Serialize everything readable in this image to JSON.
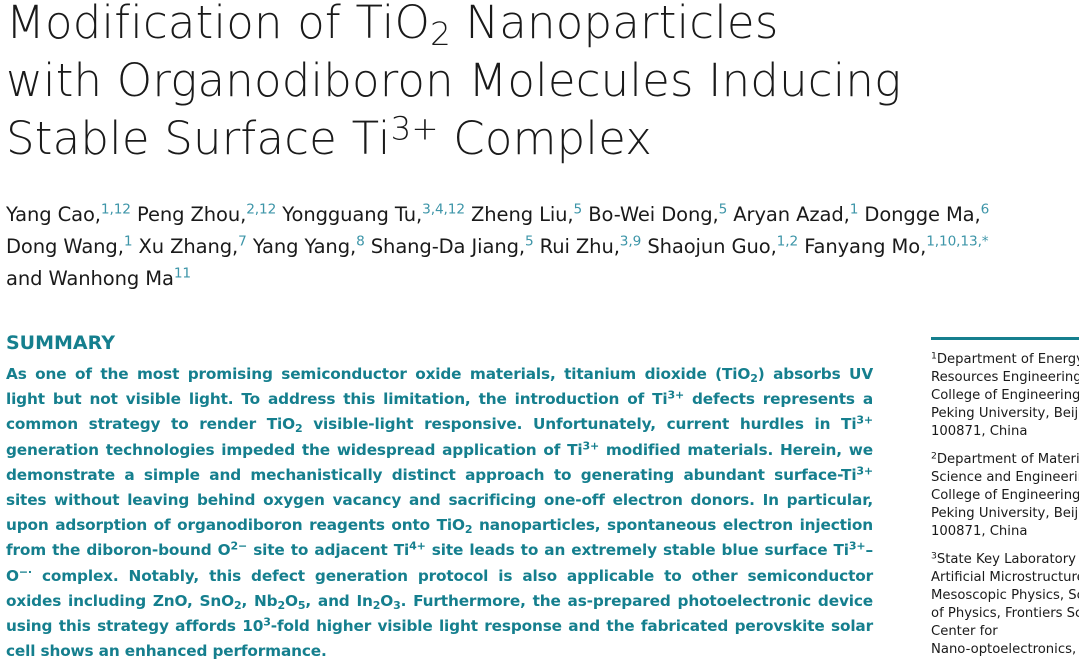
{
  "title": [
    [
      "Modification of TiO",
      {
        "sub": "2"
      },
      " Nanoparticles"
    ],
    [
      "with Organodiboron Molecules Inducing"
    ],
    [
      "Stable Surface Ti",
      {
        "sup": "3+"
      },
      " Complex"
    ]
  ],
  "authors": [
    [
      {
        "name": "Yang Cao,",
        "aff": "1,12"
      },
      {
        "name": "Peng Zhou,",
        "aff": "2,12"
      },
      {
        "name": "Yongguang Tu,",
        "aff": "3,4,12"
      },
      {
        "name": "Zheng Liu,",
        "aff": "5"
      },
      {
        "name": "Bo-Wei Dong,",
        "aff": "5"
      },
      {
        "name": "Aryan Azad,",
        "aff": "1"
      },
      {
        "name": "Dongge Ma,",
        "aff": "6"
      }
    ],
    [
      {
        "name": "Dong Wang,",
        "aff": "1"
      },
      {
        "name": "Xu Zhang,",
        "aff": "7"
      },
      {
        "name": "Yang Yang,",
        "aff": "8"
      },
      {
        "name": "Shang-Da Jiang,",
        "aff": "5"
      },
      {
        "name": "Rui Zhu,",
        "aff": "3,9"
      },
      {
        "name": "Shaojun Guo,",
        "aff": "1,2"
      },
      {
        "name": "Fanyang Mo,",
        "aff": "1,10,13,*"
      }
    ],
    [
      {
        "name": "and Wanhong Ma",
        "aff": "11"
      }
    ]
  ],
  "summary": {
    "heading": "SUMMARY",
    "text": [
      "As one of the most promising semiconductor oxide materials, titanium dioxide (TiO",
      {
        "sub": "2"
      },
      ") absorbs UV light but not visible light. To address this limitation, the introduction of Ti",
      {
        "sup": "3+"
      },
      " defects represents a common strategy to render TiO",
      {
        "sub": "2"
      },
      " visible-light responsive. Unfortunately, current hurdles in Ti",
      {
        "sup": "3+"
      },
      " generation technologies impeded the widespread application of Ti",
      {
        "sup": "3+"
      },
      " modified materials. Herein, we demonstrate a simple and mechanistically distinct approach to generating abundant surface-Ti",
      {
        "sup": "3+"
      },
      " sites without leaving behind oxygen vacancy and sacrificing one-off electron donors. In particular, upon adsorption of organodiboron reagents onto TiO",
      {
        "sub": "2"
      },
      " nanoparticles, spontaneous electron injection from the diboron-bound O",
      {
        "sup": "2−"
      },
      " site to adjacent Ti",
      {
        "sup": "4+"
      },
      " site leads to an extremely stable blue surface Ti",
      {
        "sup": "3+"
      },
      "–O",
      {
        "sup": "−·"
      },
      " complex. Notably, this defect generation protocol is also applicable to other semiconductor oxides including ZnO, SnO",
      {
        "sub": "2"
      },
      ", Nb",
      {
        "sub": "2"
      },
      "O",
      {
        "sub": "5"
      },
      ", and In",
      {
        "sub": "2"
      },
      "O",
      {
        "sub": "3"
      },
      ". Furthermore, the as-prepared photoelectronic device using this strategy affords 10",
      {
        "sup": "3"
      },
      "-fold higher visible light response and the fabricated perovskite solar cell shows an enhanced performance."
    ]
  },
  "affiliations": [
    {
      "num": "1",
      "lines": [
        "Department of Energy",
        "Resources Engineering",
        "College of Engineering",
        "Peking University, Beiji",
        "100871, China"
      ]
    },
    {
      "num": "2",
      "lines": [
        "Department of Materi",
        "Science and Engineerin",
        "College of Engineering",
        "Peking University, Beiji",
        "100871, China"
      ]
    },
    {
      "num": "3",
      "lines": [
        "State Key Laboratory f",
        "Artificial Microstructure",
        "Mesoscopic Physics, Sc",
        "of Physics, Frontiers Sc",
        "Center for",
        "Nano-optoelectronics,"
      ]
    }
  ]
}
